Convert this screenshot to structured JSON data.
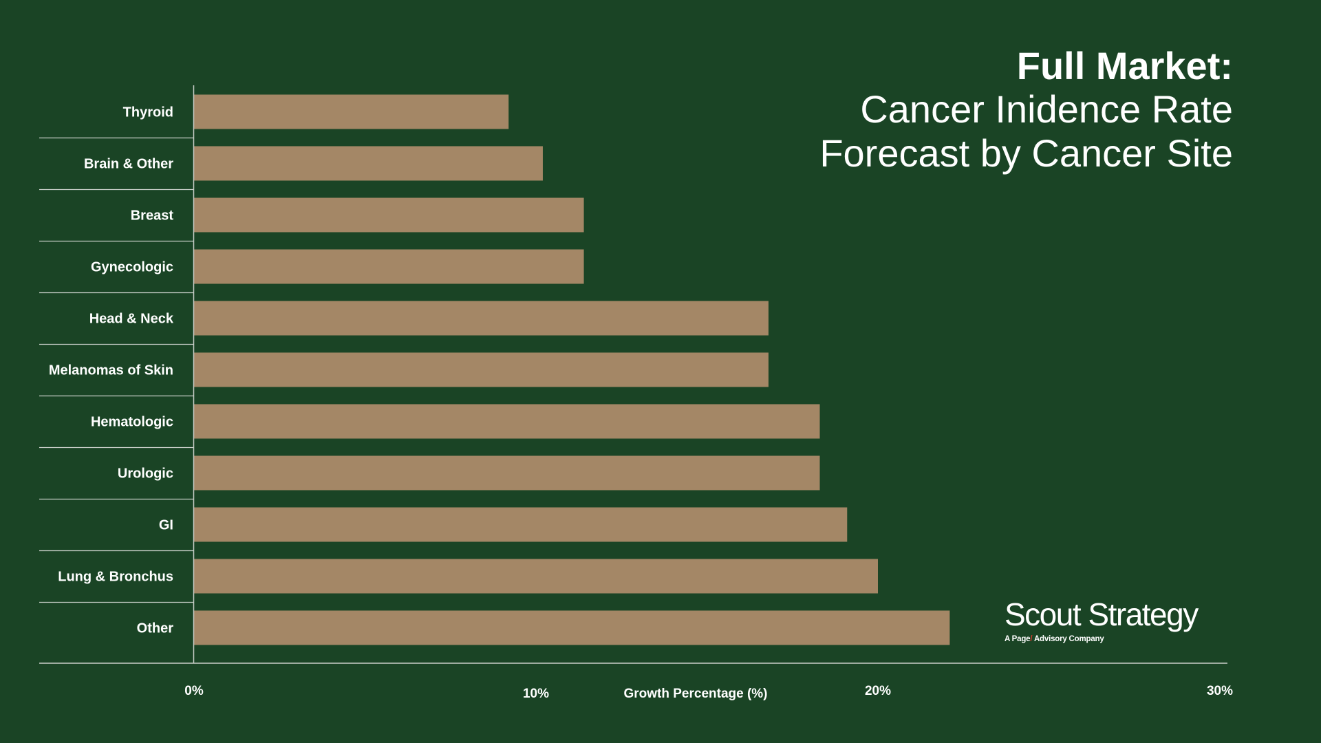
{
  "title": {
    "bold": "Full Market:",
    "line2": "Cancer Inidence Rate",
    "line3": "Forecast by Cancer Site"
  },
  "colors": {
    "background": "#1a4425",
    "bar": "#a48766",
    "axis": "#c9cfc9",
    "text": "#ffffff"
  },
  "chart_data": {
    "type": "bar",
    "orientation": "horizontal",
    "categories": [
      "Thyroid",
      "Brain & Other",
      "Breast",
      "Gynecologic",
      "Head & Neck",
      "Melanomas of Skin",
      "Hematologic",
      "Urologic",
      "GI",
      "Lung & Bronchus",
      "Other"
    ],
    "values": [
      9.2,
      10.2,
      11.4,
      11.4,
      16.8,
      16.8,
      18.3,
      18.3,
      19.1,
      20.0,
      22.1
    ],
    "xlabel": "Growth Percentage (%)",
    "xlim": [
      0,
      30
    ],
    "xticks": [
      0,
      10,
      20,
      30
    ],
    "xtick_labels": [
      "0%",
      "10%",
      "20%",
      "30%"
    ],
    "grid": false,
    "legend": "none"
  },
  "logo": {
    "name": "Scout Strategy",
    "tagline_pre": "A Page",
    "tagline_slash": "/",
    "tagline_post": " Advisory Company"
  }
}
